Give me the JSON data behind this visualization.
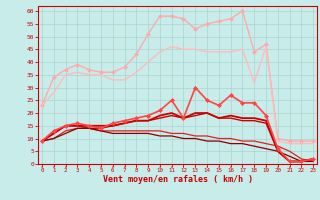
{
  "x": [
    0,
    1,
    2,
    3,
    4,
    5,
    6,
    7,
    8,
    9,
    10,
    11,
    12,
    13,
    14,
    15,
    16,
    17,
    18,
    19,
    20,
    21,
    22,
    23
  ],
  "background_color": "#c8ecea",
  "grid_color": "#aad4cc",
  "xlabel": "Vent moyen/en rafales ( km/h )",
  "xlabel_color": "#cc0000",
  "tick_color": "#cc0000",
  "ylim": [
    0,
    62
  ],
  "xlim": [
    -0.3,
    23.3
  ],
  "yticks": [
    0,
    5,
    10,
    15,
    20,
    25,
    30,
    35,
    40,
    45,
    50,
    55,
    60
  ],
  "lines": [
    {
      "name": "rafales_max_light",
      "y": [
        23,
        34,
        37,
        39,
        37,
        36,
        36,
        38,
        43,
        51,
        58,
        58,
        57,
        53,
        55,
        56,
        57,
        60,
        44,
        47,
        10,
        9,
        9,
        9
      ],
      "color": "#ffaaaa",
      "marker": "D",
      "markersize": 2,
      "linewidth": 1.0,
      "zorder": 2
    },
    {
      "name": "rafales_mid_light",
      "y": [
        23,
        28,
        35,
        36,
        35,
        35,
        33,
        33,
        36,
        40,
        44,
        46,
        45,
        45,
        44,
        44,
        44,
        45,
        32,
        46,
        9,
        8,
        8,
        8
      ],
      "color": "#ffbbbb",
      "marker": null,
      "linewidth": 1.0,
      "zorder": 2
    },
    {
      "name": "vent_moyen_marker",
      "y": [
        9,
        13,
        15,
        16,
        15,
        14,
        16,
        17,
        18,
        19,
        21,
        25,
        18,
        30,
        25,
        23,
        27,
        24,
        24,
        19,
        6,
        1,
        1,
        2
      ],
      "color": "#ff4444",
      "marker": "D",
      "markersize": 2,
      "linewidth": 1.2,
      "zorder": 5
    },
    {
      "name": "vent_moyen_line1",
      "y": [
        9,
        12,
        15,
        15,
        15,
        15,
        15,
        16,
        17,
        17,
        19,
        20,
        18,
        20,
        20,
        18,
        19,
        18,
        18,
        17,
        5,
        1,
        1,
        2
      ],
      "color": "#cc0000",
      "marker": null,
      "linewidth": 1.3,
      "zorder": 4
    },
    {
      "name": "vent_moyen_line2",
      "y": [
        9,
        12,
        15,
        15,
        14,
        14,
        15,
        16,
        17,
        17,
        18,
        19,
        18,
        19,
        20,
        18,
        18,
        17,
        17,
        16,
        5,
        1,
        1,
        2
      ],
      "color": "#cc0000",
      "marker": null,
      "linewidth": 1.0,
      "zorder": 3
    },
    {
      "name": "vent_decreasing",
      "y": [
        9,
        10,
        13,
        14,
        14,
        13,
        13,
        13,
        13,
        13,
        13,
        12,
        12,
        11,
        11,
        10,
        10,
        9,
        9,
        8,
        7,
        5,
        2,
        1
      ],
      "color": "#dd2222",
      "marker": null,
      "linewidth": 0.9,
      "zorder": 3
    },
    {
      "name": "vent_flat_decreasing",
      "y": [
        9,
        10,
        12,
        14,
        14,
        13,
        12,
        12,
        12,
        12,
        11,
        11,
        10,
        10,
        9,
        9,
        8,
        8,
        7,
        6,
        5,
        3,
        1,
        1
      ],
      "color": "#880000",
      "marker": null,
      "linewidth": 0.9,
      "zorder": 3
    }
  ]
}
